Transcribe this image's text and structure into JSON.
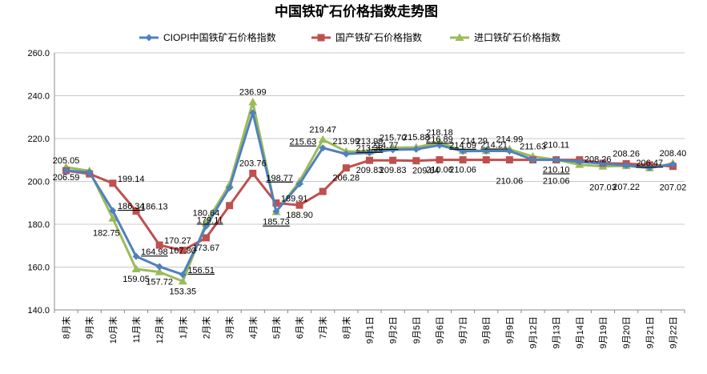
{
  "chart_data": {
    "type": "line",
    "title": "中国铁矿石价格指数走势图",
    "xlabel": "",
    "ylabel": "",
    "ylim": [
      140,
      260
    ],
    "yticks": [
      "140.0",
      "160.0",
      "180.0",
      "200.0",
      "220.0",
      "240.0",
      "260.0"
    ],
    "grid": true,
    "legend_position": "top",
    "categories": [
      "8月末",
      "9月末",
      "10月末",
      "11月末",
      "12月末",
      "1月末",
      "2月末",
      "3月末",
      "4月末",
      "5月末",
      "6月末",
      "7月末",
      "8月末",
      "9月1日",
      "9月2日",
      "9月5日",
      "9月6日",
      "9月7日",
      "9月8日",
      "9月9日",
      "9月12日",
      "9月13日",
      "9月14日",
      "9月19日",
      "9月20日",
      "9月21日",
      "9月22日"
    ],
    "series": [
      {
        "name": "CIOPI中国铁矿石价格指数",
        "color": "#4F81BD",
        "marker": "diamond",
        "values": [
          205.05,
          204.2,
          186.34,
          164.98,
          160.2,
          156.51,
          179.11,
          197.0,
          232.0,
          186.0,
          198.77,
          215.63,
          212.8,
          213.38,
          214.77,
          215.0,
          216.89,
          214.09,
          214.21,
          214.21,
          210.1,
          210.1,
          209.2,
          208.26,
          207.5,
          206.47,
          207.9
        ]
      },
      {
        "name": "国产铁矿石价格指数",
        "color": "#C0504D",
        "marker": "square",
        "values": [
          205.0,
          203.5,
          199.14,
          186.13,
          170.27,
          167.8,
          173.67,
          188.7,
          203.76,
          189.91,
          188.9,
          195.3,
          206.28,
          209.83,
          209.83,
          209.64,
          210.06,
          210.06,
          210.06,
          210.06,
          210.06,
          210.06,
          210.06,
          208.5,
          208.26,
          207.7,
          207.02
        ]
      },
      {
        "name": "进口铁矿石价格指数",
        "color": "#9BBB59",
        "marker": "triangle",
        "values": [
          206.59,
          204.9,
          182.75,
          159.05,
          157.72,
          153.35,
          180.64,
          198.5,
          236.99,
          185.73,
          200.0,
          219.47,
          213.99,
          213.99,
          215.7,
          215.88,
          218.18,
          214.29,
          214.29,
          214.99,
          211.63,
          210.11,
          207.8,
          207.03,
          207.22,
          206.2,
          208.4
        ]
      }
    ],
    "data_labels": [
      {
        "text": "205.05",
        "i": 0,
        "y": 205.05,
        "pos": "above"
      },
      {
        "text": "206.59",
        "i": 0,
        "y": 206.59,
        "pos": "below"
      },
      {
        "text": "199.14",
        "i": 2,
        "y": 199.14,
        "pos": "right"
      },
      {
        "text": "186.34",
        "i": 2,
        "y": 186.34,
        "pos": "right",
        "underline": true
      },
      {
        "text": "182.75",
        "i": 2,
        "y": 182.75,
        "pos": "belowleft"
      },
      {
        "text": "186.13",
        "i": 3,
        "y": 186.13,
        "pos": "right"
      },
      {
        "text": "164.98",
        "i": 3,
        "y": 164.98,
        "pos": "right",
        "underline": true
      },
      {
        "text": "159.05",
        "i": 3,
        "y": 159.05,
        "pos": "below"
      },
      {
        "text": "170.27",
        "i": 4,
        "y": 170.27,
        "pos": "right"
      },
      {
        "text": "167.80",
        "i": 4,
        "y": 167.8,
        "pos": "farright"
      },
      {
        "text": "157.72",
        "i": 4,
        "y": 157.72,
        "pos": "below"
      },
      {
        "text": "156.51",
        "i": 5,
        "y": 156.51,
        "pos": "right",
        "underline": true
      },
      {
        "text": "153.35",
        "i": 5,
        "y": 153.35,
        "pos": "below"
      },
      {
        "text": "180.64",
        "i": 6,
        "y": 180.64,
        "pos": "above"
      },
      {
        "text": "173.67",
        "i": 6,
        "y": 173.67,
        "pos": "below"
      },
      {
        "text": "179.11",
        "i": 7,
        "y": 179.11,
        "pos": "left",
        "underline": true
      },
      {
        "text": "236.99",
        "i": 8,
        "y": 236.99,
        "pos": "above"
      },
      {
        "text": "203.76",
        "i": 8,
        "y": 203.76,
        "pos": "above"
      },
      {
        "text": "198.77",
        "i": 10,
        "y": 198.77,
        "pos": "left",
        "underline": true
      },
      {
        "text": "189.91",
        "i": 9,
        "y": 189.91,
        "pos": "right"
      },
      {
        "text": "188.90",
        "i": 10,
        "y": 188.9,
        "pos": "below"
      },
      {
        "text": "185.73",
        "i": 9,
        "y": 185.73,
        "pos": "below",
        "underline": true
      },
      {
        "text": "219.47",
        "i": 11,
        "y": 219.47,
        "pos": "above"
      },
      {
        "text": "215.63",
        "i": 11,
        "y": 215.63,
        "pos": "left",
        "underline": true
      },
      {
        "text": "213.99",
        "i": 12,
        "y": 213.99,
        "pos": "above"
      },
      {
        "text": "206.28",
        "i": 12,
        "y": 206.28,
        "pos": "below"
      },
      {
        "text": "213.99",
        "i": 13,
        "y": 213.99,
        "pos": "above"
      },
      {
        "text": "213.38",
        "i": 13,
        "y": 213.38,
        "pos": "on",
        "underline": true
      },
      {
        "text": "209.83",
        "i": 13,
        "y": 209.83,
        "pos": "below"
      },
      {
        "text": "215.70",
        "i": 14,
        "y": 215.7,
        "pos": "above"
      },
      {
        "text": "214.77",
        "i": 14,
        "y": 214.77,
        "pos": "onleft",
        "underline": true
      },
      {
        "text": "209.83",
        "i": 14,
        "y": 209.83,
        "pos": "below"
      },
      {
        "text": "215.88",
        "i": 15,
        "y": 215.88,
        "pos": "above"
      },
      {
        "text": "209.64",
        "i": 15,
        "y": 209.64,
        "pos": "belowright"
      },
      {
        "text": "218.18",
        "i": 16,
        "y": 218.18,
        "pos": "above"
      },
      {
        "text": "216.89",
        "i": 16,
        "y": 216.89,
        "pos": "onbelow",
        "underline": true
      },
      {
        "text": "210.06",
        "i": 16,
        "y": 210.06,
        "pos": "below"
      },
      {
        "text": "214.29",
        "i": 17,
        "y": 214.29,
        "pos": "aboveright"
      },
      {
        "text": "214.09",
        "i": 17,
        "y": 214.09,
        "pos": "onbelow",
        "underline": true
      },
      {
        "text": "210.06",
        "i": 17,
        "y": 210.06,
        "pos": "below2"
      },
      {
        "text": "214.99",
        "i": 19,
        "y": 214.99,
        "pos": "above"
      },
      {
        "text": "214.21",
        "i": 18,
        "y": 214.21,
        "pos": "onbelowright",
        "underline": true
      },
      {
        "text": "210.06",
        "i": 19,
        "y": 210.06,
        "pos": "below3"
      },
      {
        "text": "211.63",
        "i": 20,
        "y": 211.63,
        "pos": "above"
      },
      {
        "text": "210.11",
        "i": 21,
        "y": 210.11,
        "pos": "above2"
      },
      {
        "text": "210.10",
        "i": 21,
        "y": 210.1,
        "pos": "below",
        "underline": true
      },
      {
        "text": "210.06",
        "i": 21,
        "y": 210.06,
        "pos": "below4"
      },
      {
        "text": "208.26",
        "i": 22,
        "y": 208.26,
        "pos": "right"
      },
      {
        "text": "207.03",
        "i": 23,
        "y": 207.03,
        "pos": "below3"
      },
      {
        "text": "208.26",
        "i": 24,
        "y": 208.26,
        "pos": "above"
      },
      {
        "text": "207.22",
        "i": 24,
        "y": 207.22,
        "pos": "below3"
      },
      {
        "text": "206.47",
        "i": 25,
        "y": 206.47,
        "pos": "on",
        "underline": true
      },
      {
        "text": "208.40",
        "i": 26,
        "y": 208.4,
        "pos": "above"
      },
      {
        "text": "207.02",
        "i": 26,
        "y": 207.02,
        "pos": "below3"
      }
    ]
  }
}
